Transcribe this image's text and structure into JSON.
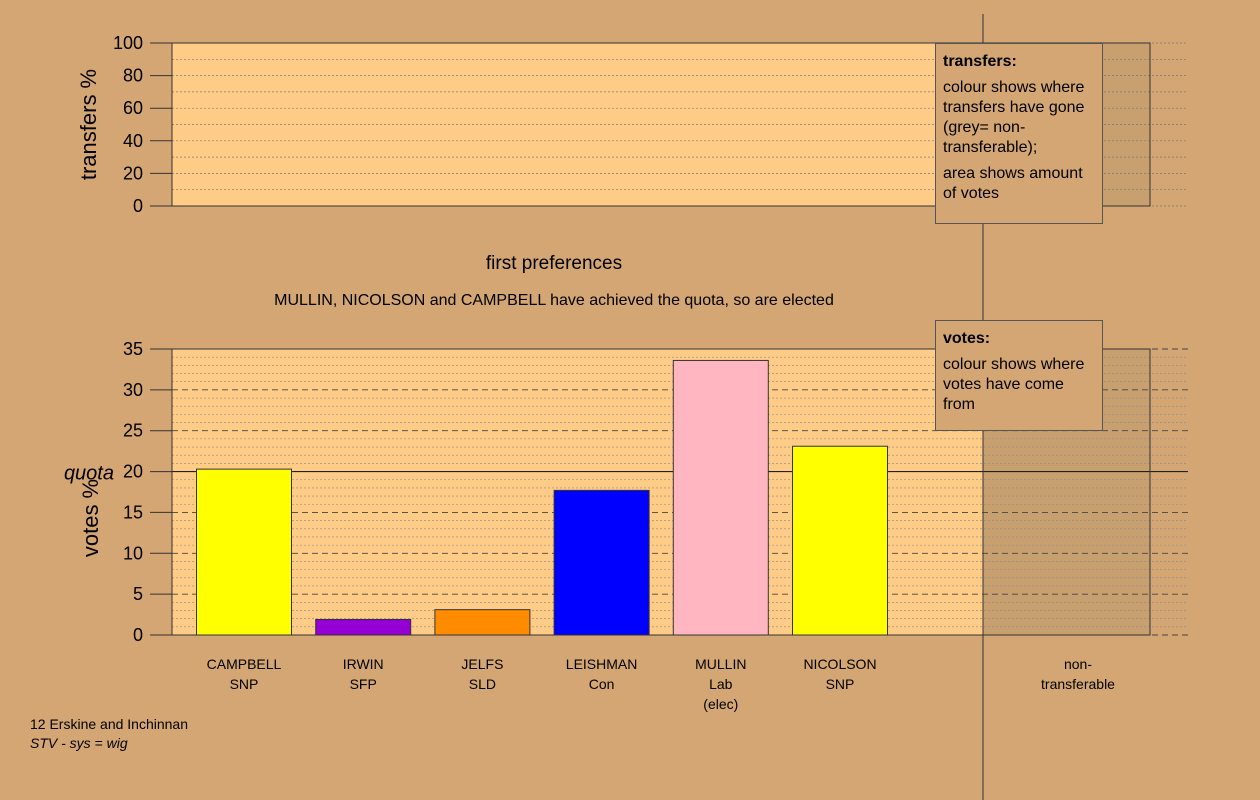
{
  "chart_data": [
    {
      "type": "bar",
      "name": "transfers",
      "ylabel": "transfers %",
      "ylim": [
        0,
        100
      ],
      "yticks": [
        0,
        20,
        40,
        60,
        80,
        100
      ],
      "grid": true,
      "values": []
    },
    {
      "type": "bar",
      "name": "votes",
      "title": "first preferences",
      "subtitle": "MULLIN, NICOLSON and CAMPBELL have achieved the quota, so are elected",
      "ylabel": "votes %",
      "ylim": [
        0,
        35
      ],
      "yticks": [
        0,
        5,
        10,
        15,
        20,
        25,
        30,
        35
      ],
      "grid": true,
      "quota": 20,
      "quota_label": "quota",
      "categories": [
        {
          "lines": [
            "CAMPBELL",
            "SNP"
          ],
          "value": 20.3,
          "color": "#ffff00"
        },
        {
          "lines": [
            "IRWIN",
            "SFP"
          ],
          "value": 1.9,
          "color": "#9400d3"
        },
        {
          "lines": [
            "JELFS",
            "SLD"
          ],
          "value": 3.1,
          "color": "#ff8c00"
        },
        {
          "lines": [
            "LEISHMAN",
            "Con"
          ],
          "value": 17.7,
          "color": "#0000ff"
        },
        {
          "lines": [
            "MULLIN",
            "Lab",
            "(elec)"
          ],
          "value": 33.6,
          "color": "#ffb6c1"
        },
        {
          "lines": [
            "NICOLSON",
            "SNP"
          ],
          "value": 23.1,
          "color": "#ffff00"
        }
      ],
      "extra_category": {
        "lines": [
          "non-",
          "transferable"
        ]
      }
    }
  ],
  "legend": {
    "transfers": {
      "title": "transfers:",
      "line1": "colour shows where transfers have gone (grey= non-transferable);",
      "line2": "area shows amount of votes"
    },
    "votes": {
      "title": "votes:",
      "line1": "colour shows where votes have come from"
    }
  },
  "footer": {
    "ward": "12 Erskine and Inchinnan",
    "system": "STV - sys = wig"
  },
  "colors": {
    "background": "#d4a674",
    "plot_fill": "#ffcc88",
    "shaded_fill": "#c8a070"
  }
}
